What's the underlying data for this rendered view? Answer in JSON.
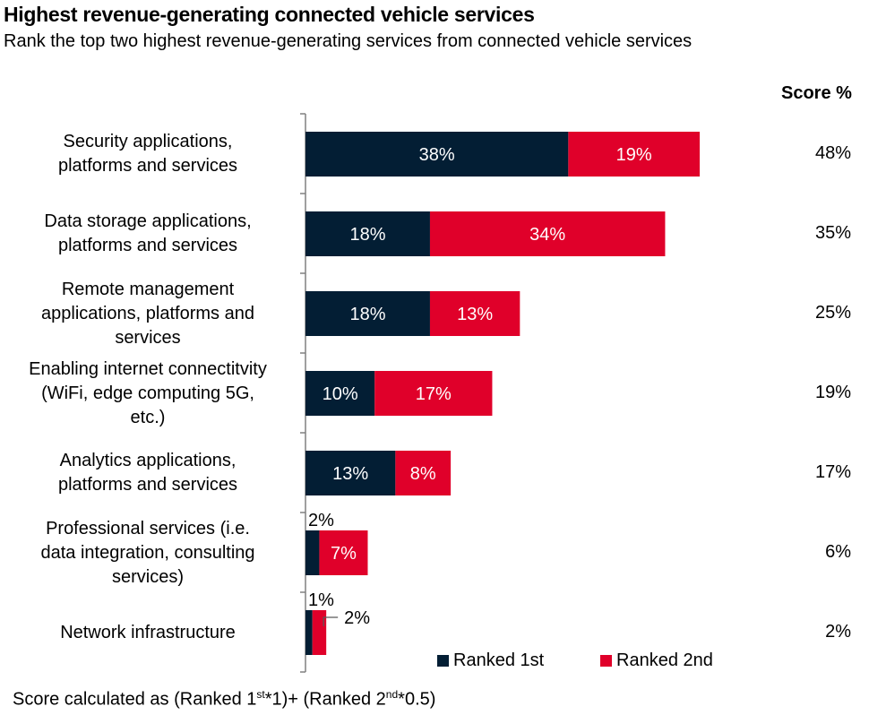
{
  "header": {
    "title": "Highest revenue-generating connected vehicle services",
    "subtitle": "Rank the top two highest revenue-generating services from connected vehicle services"
  },
  "score_header": "Score %",
  "colors": {
    "ranked_1st": "#031e34",
    "ranked_2nd": "#e0002a"
  },
  "legend": [
    {
      "label": "Ranked 1st",
      "color": "#031e34"
    },
    {
      "label": "Ranked 2nd",
      "color": "#e0002a"
    }
  ],
  "footnote": {
    "prefix": "Score calculated as (Ranked 1",
    "sup1": "st",
    "mid": "*1)+ (Ranked 2",
    "sup2": "nd",
    "suffix": "*0.5)"
  },
  "chart_data": {
    "type": "bar",
    "orientation": "horizontal",
    "stacked": true,
    "title": "Highest revenue-generating connected vehicle services",
    "subtitle": "Rank the top two highest revenue-generating services from connected vehicle services",
    "categories": [
      [
        "Security applications,",
        "platforms and services"
      ],
      [
        "Data storage applications,",
        "platforms and services"
      ],
      [
        "Remote management",
        "applications, platforms and",
        "services"
      ],
      [
        "Enabling internet connectitvity",
        "(WiFi, edge computing 5G,",
        "etc.)"
      ],
      [
        "Analytics applications,",
        "platforms and services"
      ],
      [
        "Professional services (i.e.",
        "data integration, consulting",
        "services)"
      ],
      [
        "Network infrastructure"
      ]
    ],
    "series": [
      {
        "name": "Ranked 1st",
        "values": [
          38,
          18,
          18,
          10,
          13,
          2,
          1
        ],
        "labels": [
          "38%",
          "18%",
          "18%",
          "10%",
          "13%",
          "2%",
          "1%"
        ]
      },
      {
        "name": "Ranked 2nd",
        "values": [
          19,
          34,
          13,
          17,
          8,
          7,
          2
        ],
        "labels": [
          "19%",
          "34%",
          "13%",
          "17%",
          "8%",
          "7%",
          "2%"
        ]
      }
    ],
    "score_column": {
      "header": "Score %",
      "values": [
        "48%",
        "35%",
        "25%",
        "19%",
        "17%",
        "6%",
        "2%"
      ]
    },
    "xlabel": "",
    "ylabel": "",
    "xlim": [
      0,
      60
    ],
    "grid": false,
    "legend_position": "bottom-right"
  }
}
